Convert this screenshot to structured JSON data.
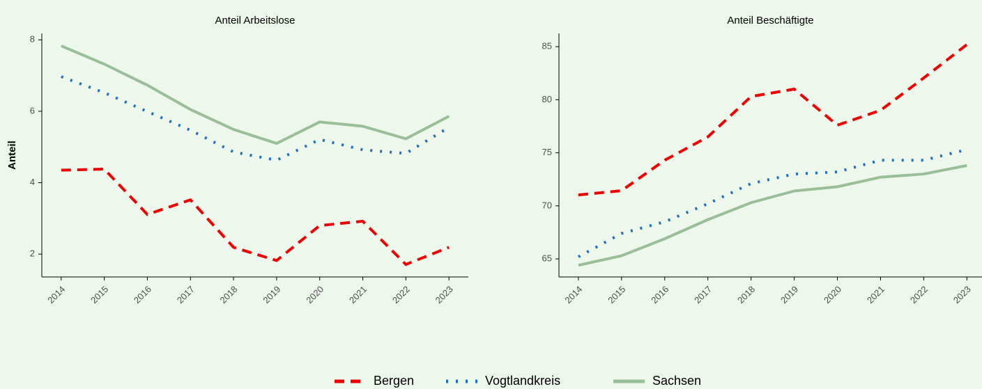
{
  "chart_data": [
    {
      "type": "line",
      "title": "Anteil Arbeitslose",
      "y_label": "Anteil",
      "x": [
        2014,
        2015,
        2016,
        2017,
        2018,
        2019,
        2020,
        2021,
        2022,
        2023
      ],
      "xlim": [
        2013.55,
        2023.45
      ],
      "xticks": [
        2014,
        2015,
        2016,
        2017,
        2018,
        2019,
        2020,
        2021,
        2022,
        2023
      ],
      "ylim": [
        1.36,
        8.18
      ],
      "yticks": [
        2,
        4,
        6,
        8
      ],
      "series": [
        {
          "name": "Bergen",
          "color": "#ee0000",
          "line_style": "dashed",
          "values": [
            4.35,
            4.38,
            3.11,
            3.52,
            2.19,
            1.82,
            2.8,
            2.92,
            1.71,
            2.19
          ]
        },
        {
          "name": "Vogtlandkreis",
          "color": "#1f6fc5",
          "line_style": "dotted",
          "values": [
            6.97,
            6.52,
            5.99,
            5.47,
            4.86,
            4.63,
            5.21,
            4.92,
            4.82,
            5.55
          ]
        },
        {
          "name": "Sachsen",
          "color": "#98bf98",
          "line_style": "solid",
          "values": [
            7.83,
            7.32,
            6.73,
            6.05,
            5.49,
            5.1,
            5.7,
            5.58,
            5.23,
            5.86
          ]
        }
      ],
      "legend": "bottom"
    },
    {
      "type": "line",
      "title": "Anteil Beschäftigte",
      "x": [
        2014,
        2015,
        2016,
        2017,
        2018,
        2019,
        2020,
        2021,
        2022,
        2023
      ],
      "xlim": [
        2013.55,
        2023.35
      ],
      "xticks": [
        2014,
        2015,
        2016,
        2017,
        2018,
        2019,
        2020,
        2021,
        2022,
        2023
      ],
      "ylim": [
        63.3,
        86.25
      ],
      "yticks": [
        65,
        70,
        75,
        80,
        85
      ],
      "series": [
        {
          "name": "Bergen",
          "color": "#ee0000",
          "line_style": "dashed",
          "values": [
            71.03,
            71.43,
            74.3,
            76.5,
            80.3,
            81.0,
            77.6,
            79.0,
            82.05,
            85.2
          ]
        },
        {
          "name": "Vogtlandkreis",
          "color": "#1f6fc5",
          "line_style": "dotted",
          "values": [
            65.2,
            67.4,
            68.5,
            70.2,
            72.1,
            73.0,
            73.2,
            74.3,
            74.3,
            75.3
          ]
        },
        {
          "name": "Sachsen",
          "color": "#98bf98",
          "line_style": "solid",
          "values": [
            64.4,
            65.3,
            66.9,
            68.7,
            70.3,
            71.4,
            71.8,
            72.7,
            73.0,
            73.8
          ]
        }
      ]
    }
  ]
}
